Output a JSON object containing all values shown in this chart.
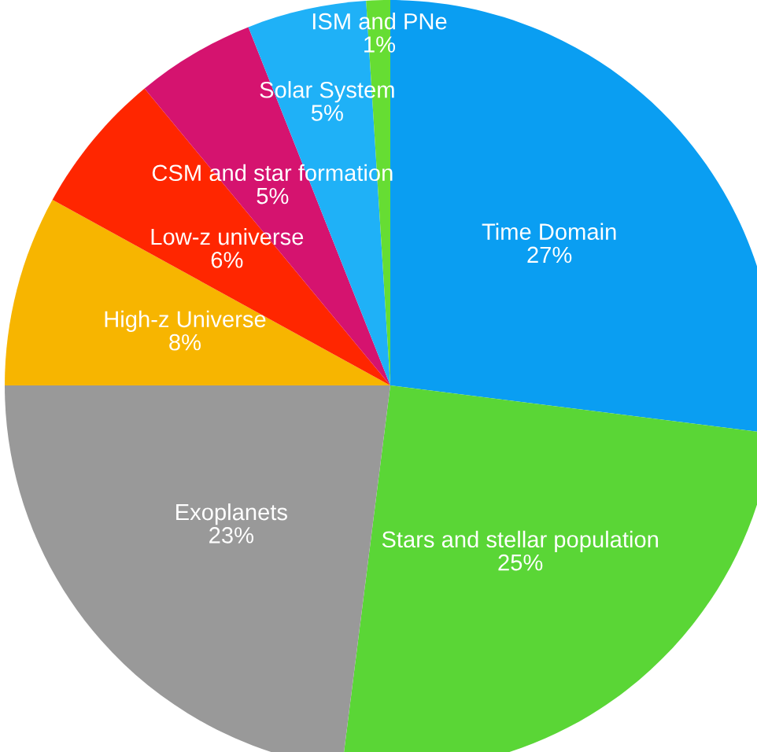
{
  "chart_data": {
    "type": "pie",
    "categories": [
      "Time Domain",
      "Stars and stellar population",
      "Exoplanets",
      "High-z Universe",
      "Low-z universe",
      "CSM and star formation",
      "Solar System",
      "ISM and PNe"
    ],
    "values": [
      27,
      25,
      23,
      8,
      6,
      5,
      5,
      1
    ],
    "colors": [
      "#0a9ef2",
      "#5ad636",
      "#999999",
      "#f7b500",
      "#ff2600",
      "#d5136f",
      "#1fb1f7",
      "#66dd33"
    ],
    "value_labels": [
      "27%",
      "25%",
      "23%",
      "8%",
      "6%",
      "5%",
      "5%",
      "1%"
    ],
    "legend": false
  }
}
